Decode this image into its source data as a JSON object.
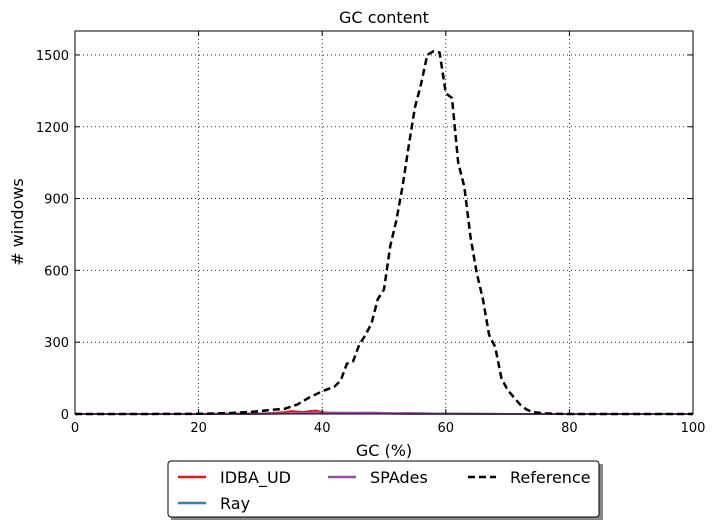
{
  "chart_data": {
    "type": "line",
    "title": "GC content",
    "xlabel": "GC (%)",
    "ylabel": "# windows",
    "xlim": [
      0,
      100
    ],
    "ylim": [
      0,
      1600
    ],
    "xticks": [
      0,
      20,
      40,
      60,
      80,
      100
    ],
    "yticks": [
      0,
      300,
      600,
      900,
      1200,
      1500
    ],
    "grid": true,
    "legend": {
      "position": "bottom-center-outside",
      "columns": 3,
      "order": [
        "IDBA_UD",
        "Ray",
        "SPAdes",
        "Reference"
      ]
    },
    "series": [
      {
        "name": "IDBA_UD",
        "color": "#e41a1c",
        "style": "solid",
        "x": [
          0,
          10,
          20,
          30,
          32,
          34,
          35,
          36,
          37,
          38,
          39,
          40,
          41,
          42,
          44,
          46,
          48,
          50,
          55,
          60,
          70,
          80,
          90,
          100
        ],
        "y": [
          0,
          0,
          0,
          2,
          4,
          8,
          12,
          10,
          8,
          12,
          14,
          8,
          5,
          4,
          3,
          3,
          2,
          2,
          1,
          1,
          0,
          0,
          0,
          0
        ]
      },
      {
        "name": "Ray",
        "color": "#377eb8",
        "style": "solid",
        "x": [
          0,
          10,
          20,
          30,
          34,
          36,
          38,
          40,
          42,
          44,
          46,
          48,
          50,
          54,
          58,
          62,
          70,
          80,
          90,
          100
        ],
        "y": [
          0,
          0,
          0,
          1,
          2,
          3,
          3,
          3,
          3,
          2,
          2,
          2,
          2,
          1,
          1,
          1,
          0,
          0,
          0,
          0
        ]
      },
      {
        "name": "SPAdes",
        "color": "#984ea3",
        "style": "solid",
        "x": [
          0,
          10,
          20,
          30,
          34,
          36,
          38,
          40,
          42,
          44,
          46,
          48,
          50,
          52,
          54,
          56,
          58,
          60,
          64,
          70,
          80,
          90,
          100
        ],
        "y": [
          0,
          0,
          0,
          1,
          2,
          3,
          4,
          5,
          6,
          5,
          5,
          6,
          4,
          3,
          4,
          3,
          2,
          2,
          1,
          0,
          0,
          0,
          0
        ]
      },
      {
        "name": "Reference",
        "color": "#000000",
        "style": "dashed",
        "x": [
          0,
          10,
          20,
          24,
          26,
          28,
          30,
          32,
          34,
          36,
          38,
          40,
          42,
          43,
          44,
          45,
          46,
          47,
          48,
          49,
          50,
          51,
          52,
          53,
          54,
          55,
          56,
          57,
          58,
          59,
          60,
          61,
          62,
          63,
          64,
          65,
          66,
          67,
          68,
          69,
          70,
          71,
          72,
          73,
          74,
          76,
          78,
          80,
          90,
          100
        ],
        "y": [
          0,
          0,
          1,
          3,
          5,
          8,
          12,
          18,
          22,
          40,
          70,
          95,
          115,
          140,
          210,
          220,
          290,
          330,
          380,
          480,
          520,
          700,
          810,
          950,
          1120,
          1280,
          1380,
          1500,
          1515,
          1510,
          1340,
          1320,
          1050,
          950,
          740,
          590,
          480,
          330,
          280,
          150,
          100,
          70,
          40,
          20,
          8,
          3,
          1,
          0,
          0,
          0
        ]
      }
    ]
  }
}
